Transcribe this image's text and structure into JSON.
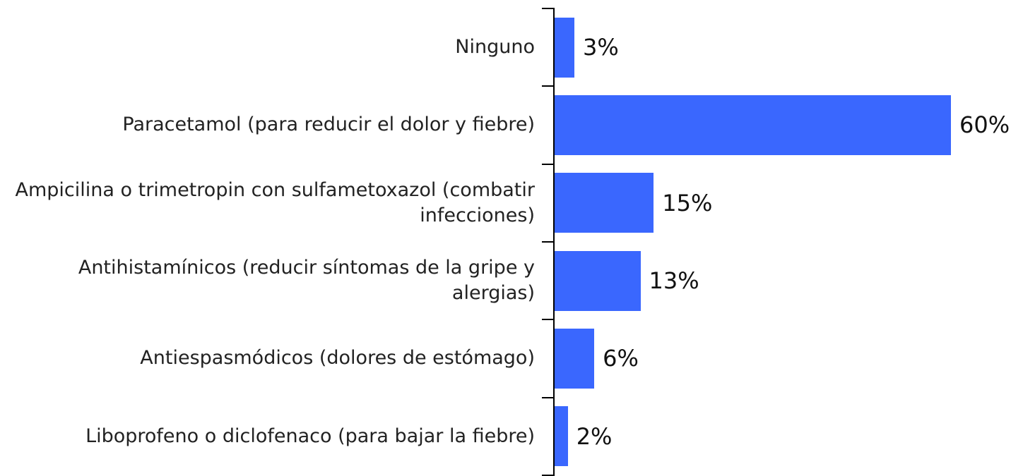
{
  "chart_data": {
    "type": "bar",
    "orientation": "horizontal",
    "color": "#3a67fe",
    "categories": [
      "Ninguno",
      "Paracetamol (para reducir el dolor y fiebre)",
      "Ampicilina o trimetropin con sulfametoxazol (combatir infecciones)",
      "Antihistamínicos (reducir síntomas de la gripe y alergias)",
      "Antiespasmódicos (dolores de estómago)",
      "Liboprofeno o diclofenaco (para bajar la fiebre)"
    ],
    "values": [
      3,
      60,
      15,
      13,
      6,
      2
    ],
    "value_labels": [
      "3%",
      "60%",
      "15%",
      "13%",
      "6%",
      "2%"
    ]
  }
}
